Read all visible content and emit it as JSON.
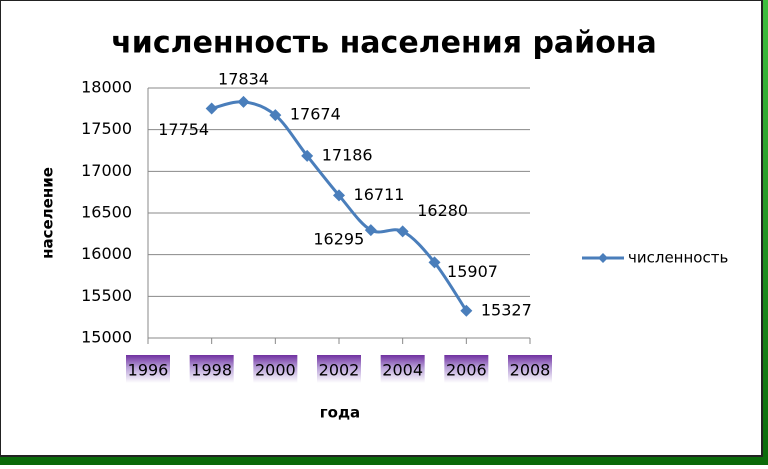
{
  "chart_data": {
    "type": "line",
    "title": "численность населения района",
    "x_label": "года",
    "y_label": "население",
    "x": [
      1998,
      1999,
      2000,
      2001,
      2002,
      2003,
      2004,
      2005,
      2006
    ],
    "series": [
      {
        "name": "численность",
        "color": "#4a7ebb",
        "values": [
          17754,
          17834,
          17674,
          17186,
          16711,
          16295,
          16280,
          15907,
          15327
        ]
      }
    ],
    "xlim": [
      1996,
      2008
    ],
    "xticks": [
      1996,
      1998,
      2000,
      2002,
      2004,
      2006,
      2008
    ],
    "ylim": [
      15000,
      18000
    ],
    "yticks": [
      15000,
      15500,
      16000,
      16500,
      17000,
      17500,
      18000
    ],
    "grid": true,
    "legend": "right"
  }
}
